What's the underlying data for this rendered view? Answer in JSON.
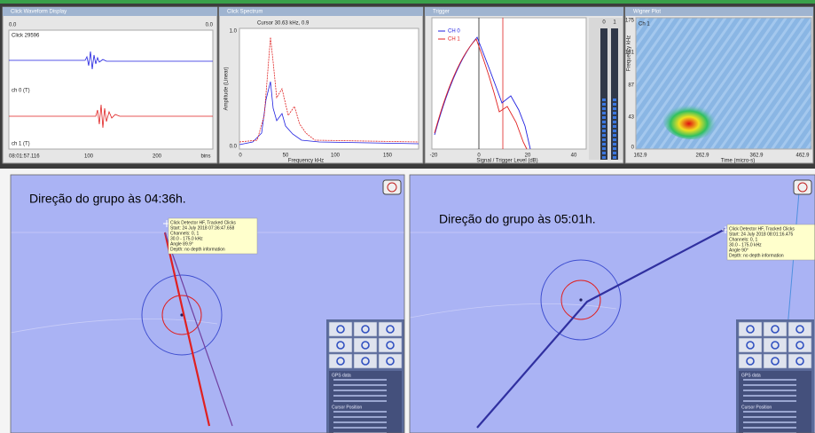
{
  "waveform": {
    "title": "Click Waveform Display",
    "left_label": "0.0",
    "right_label": "0.0",
    "click": "Click 29596",
    "channels": [
      "ch 0 (T)",
      "ch 1 (T)"
    ],
    "x_ticks": [
      "08:01:57.116",
      "100",
      "200"
    ],
    "x_unit": "bins"
  },
  "spectrum": {
    "title": "Click Spectrum",
    "cursor": "Cursor 30.63 kHz, 0.9",
    "y_ticks": [
      "1.0",
      "0.0"
    ],
    "y_label": "Amplitude (Linear)",
    "x_ticks": [
      "0",
      "50",
      "100",
      "150"
    ],
    "x_label": "Frequency kHz"
  },
  "trigger": {
    "title": "Trigger",
    "legend": [
      "CH 0",
      "CH 1"
    ],
    "x_ticks": [
      "-20",
      "0",
      "20",
      "40"
    ],
    "x_label": "Signal / Trigger Level (dB)",
    "meter_labels": [
      "0",
      "1"
    ]
  },
  "wigner": {
    "title": "Wigner Plot",
    "channel": "Ch 1",
    "y_ticks": [
      "175",
      "131",
      "87",
      "43",
      "0"
    ],
    "y_label": "Frequency kHz",
    "x_ticks": [
      "162.9",
      "262.9",
      "362.9",
      "462.9"
    ],
    "x_label": "Time (micro-s)"
  },
  "maps": [
    {
      "caption": "Direção do grupo às 04:36h.",
      "tooltip": [
        "Click Detector HF, Tracked Clicks",
        "Start: 24 July 2018 07:36:47.658",
        "Channels: 0, 1",
        "30.0 - 175.0 kHz",
        "Angle 89.9°",
        "Depth: no depth information"
      ],
      "panel_headings": [
        "GPS data",
        "Cursor Position"
      ]
    },
    {
      "caption": "Direção do grupo às 05:01h.",
      "tooltip": [
        "Click Detector HF, Tracked Clicks",
        "Start: 24 July 2018 08:01:16.475",
        "Channels: 0, 1",
        "30.0 - 175.0 kHz",
        "Angle 90°",
        "Depth: no depth information"
      ],
      "panel_headings": [
        "GPS data",
        "Cursor Position"
      ]
    }
  ]
}
